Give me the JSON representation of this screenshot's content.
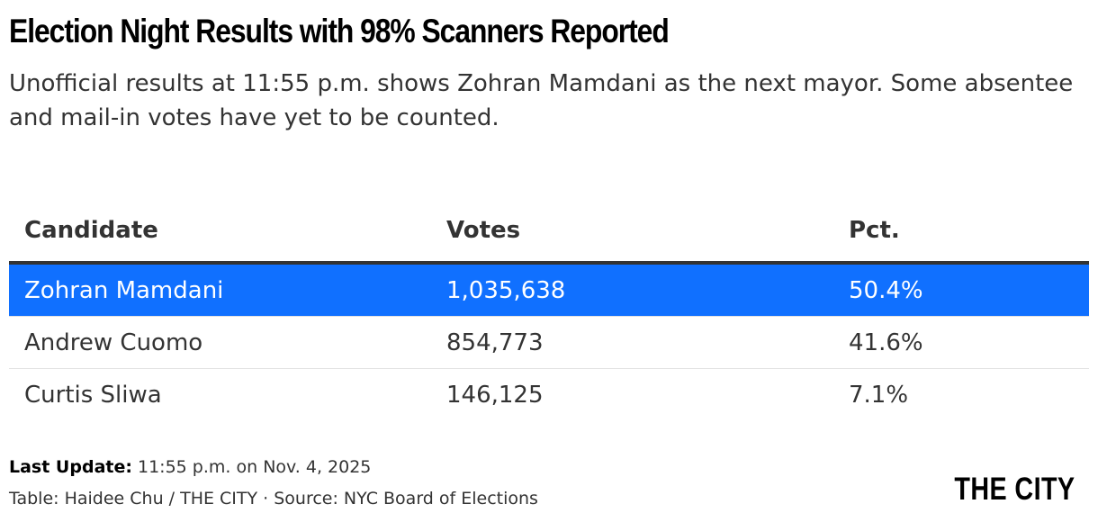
{
  "title": "Election Night Results with 98% Scanners Reported",
  "subtitle": "Unofficial results at 11:55 p.m. shows Zohran Mamdani as the next mayor. Some absentee and mail-in votes have yet to be counted.",
  "colors": {
    "highlight": "#1070ff",
    "text": "#333333",
    "rule": "#333333"
  },
  "chart_data": {
    "type": "table",
    "columns": [
      "Candidate",
      "Votes",
      "Pct."
    ],
    "rows": [
      {
        "candidate": "Zohran Mamdani",
        "votes": "1,035,638",
        "pct": "50.4%",
        "highlighted": true
      },
      {
        "candidate": "Andrew Cuomo",
        "votes": "854,773",
        "pct": "41.6%",
        "highlighted": false
      },
      {
        "candidate": "Curtis Sliwa",
        "votes": "146,125",
        "pct": "7.1%",
        "highlighted": false
      }
    ]
  },
  "footer": {
    "update_label": "Last Update:",
    "update_value": "11:55 p.m. on Nov. 4, 2025",
    "credit": "Table: Haidee Chu / THE CITY · Source: NYC Board of Elections"
  },
  "logo": "THE CITY"
}
